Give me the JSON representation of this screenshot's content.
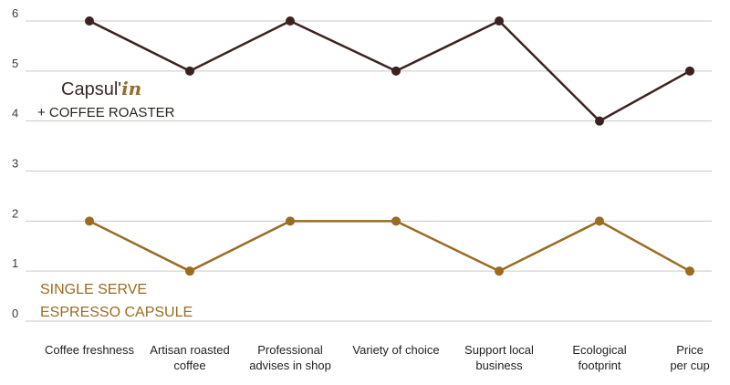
{
  "chart_data": {
    "type": "line",
    "categories": [
      [
        "Coffee freshness"
      ],
      [
        "Artisan roasted",
        "coffee"
      ],
      [
        "Professional",
        "advises in shop"
      ],
      [
        "Variety of choice"
      ],
      [
        "Support local",
        "business"
      ],
      [
        "Ecological",
        "footprint"
      ],
      [
        "Price",
        "per cup"
      ]
    ],
    "ylim": [
      0,
      6
    ],
    "yticks": [
      "0",
      "1",
      "2",
      "3",
      "4",
      "5",
      "6"
    ],
    "grid": true,
    "series": [
      {
        "label_lines": [
          "Capsul'",
          "in",
          "+ COFFEE ROASTER"
        ],
        "color": "#3b2220",
        "values": [
          6,
          5,
          6,
          5,
          6,
          4,
          5
        ]
      },
      {
        "label_lines": [
          "SINGLE SERVE",
          "ESPRESSO CAPSULE"
        ],
        "color": "#9a6b23",
        "values": [
          2,
          1,
          2,
          2,
          1,
          2,
          1
        ]
      }
    ]
  }
}
